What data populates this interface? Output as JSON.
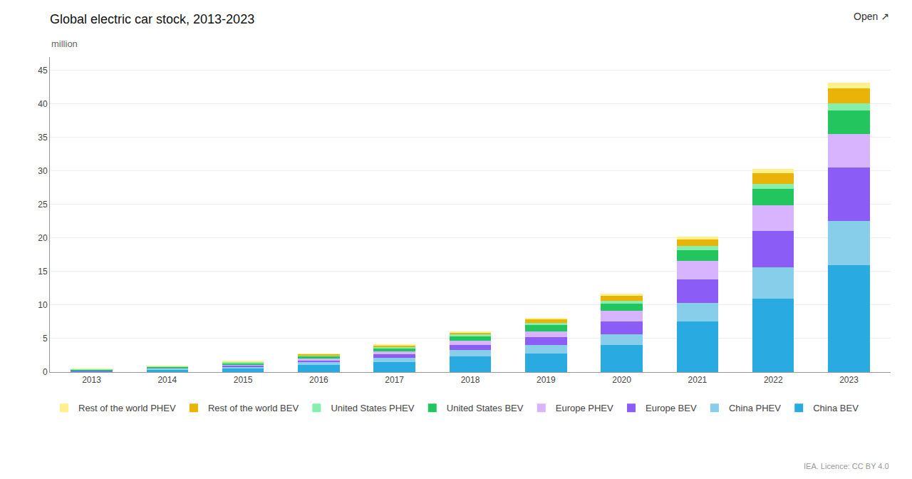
{
  "chart_data": {
    "type": "bar",
    "title": "Global electric car stock, 2013-2023",
    "ylabel": "million",
    "annotations": [
      "Open ↗",
      "IEA. Licence: CC BY 4.0"
    ],
    "x": [
      2013,
      2014,
      2015,
      2016,
      2017,
      2018,
      2019,
      2020,
      2021,
      2022,
      2023
    ],
    "series": [
      {
        "name": "China BEV",
        "color": "#29ABE2",
        "values": [
          0.16,
          0.33,
          0.59,
          1.07,
          1.54,
          2.32,
          2.8,
          4.0,
          7.5,
          11.0,
          16.0
        ]
      },
      {
        "name": "China PHEV",
        "color": "#87CEEB",
        "values": [
          0.05,
          0.1,
          0.21,
          0.4,
          0.64,
          0.98,
          1.2,
          1.6,
          2.8,
          4.6,
          6.5
        ]
      },
      {
        "name": "Europe BEV",
        "color": "#8B5CF6",
        "values": [
          0.05,
          0.1,
          0.19,
          0.3,
          0.5,
          0.75,
          1.2,
          1.9,
          3.5,
          5.5,
          8.0
        ]
      },
      {
        "name": "Europe PHEV",
        "color": "#D8B4FE",
        "values": [
          0.03,
          0.07,
          0.12,
          0.21,
          0.36,
          0.58,
          0.9,
          1.6,
          2.8,
          3.8,
          5.0
        ]
      },
      {
        "name": "United States BEV",
        "color": "#22C55E",
        "values": [
          0.1,
          0.18,
          0.26,
          0.38,
          0.52,
          0.68,
          0.9,
          1.1,
          1.6,
          2.4,
          3.5
        ]
      },
      {
        "name": "United States PHEV",
        "color": "#86EFAC",
        "values": [
          0.07,
          0.1,
          0.14,
          0.18,
          0.24,
          0.31,
          0.39,
          0.48,
          0.6,
          0.82,
          1.1
        ]
      },
      {
        "name": "Rest of the world BEV",
        "color": "#EAB308",
        "values": [
          0.02,
          0.04,
          0.08,
          0.13,
          0.2,
          0.32,
          0.5,
          0.7,
          1.0,
          1.5,
          2.2
        ]
      },
      {
        "name": "Rest of the world PHEV",
        "color": "#FEF08A",
        "values": [
          0.01,
          0.02,
          0.03,
          0.05,
          0.08,
          0.12,
          0.18,
          0.28,
          0.42,
          0.68,
          0.9
        ]
      }
    ],
    "xlim": [
      2012.45,
      2023.55
    ],
    "xticks": [
      2013,
      2014,
      2015,
      2016,
      2017,
      2018,
      2019,
      2020,
      2021,
      2022,
      2023
    ],
    "ylim": [
      0,
      47
    ],
    "yticks": [
      0,
      5,
      10,
      15,
      20,
      25,
      30,
      35,
      40,
      45
    ],
    "stacked": true,
    "grid": true,
    "legend": "bottom"
  }
}
